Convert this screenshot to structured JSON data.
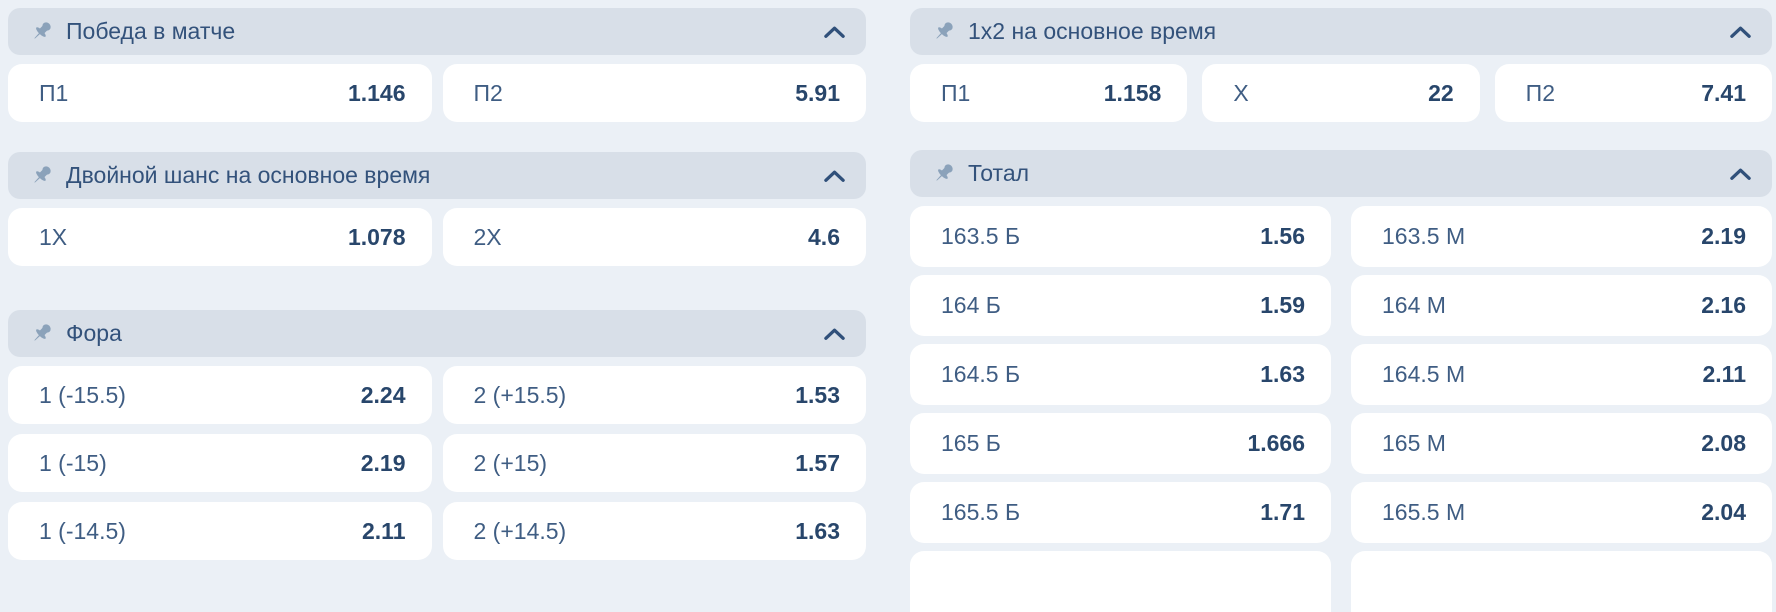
{
  "theme": {
    "page_bg": "#ebf0f6",
    "header_bg": "#d8dfe8",
    "header_text": "#33527b",
    "label_text": "#3f5d83",
    "value_text": "#28466b",
    "cell_bg": "#ffffff",
    "pin_color": "#8ba2ba",
    "chevron_color": "#30507a"
  },
  "columns": [
    {
      "name": "left",
      "sections": [
        {
          "title": "Победа в матче",
          "pin_icon": "pushpin-icon",
          "collapse_icon": "chevron-up-icon",
          "rows": [
            [
              {
                "label": "П1",
                "value": "1.146"
              },
              {
                "label": "П2",
                "value": "5.91"
              }
            ]
          ]
        },
        {
          "title": "Двойной шанс на основное время",
          "pin_icon": "pushpin-icon",
          "collapse_icon": "chevron-up-icon",
          "rows": [
            [
              {
                "label": "1X",
                "value": "1.078"
              },
              {
                "label": "2X",
                "value": "4.6"
              }
            ]
          ]
        },
        {
          "title": "Фора",
          "pin_icon": "pushpin-icon",
          "collapse_icon": "chevron-up-icon",
          "rows": [
            [
              {
                "label": "1 (-15.5)",
                "value": "2.24"
              },
              {
                "label": "2 (+15.5)",
                "value": "1.53"
              }
            ],
            [
              {
                "label": "1 (-15)",
                "value": "2.19"
              },
              {
                "label": "2 (+15)",
                "value": "1.57"
              }
            ],
            [
              {
                "label": "1 (-14.5)",
                "value": "2.11"
              },
              {
                "label": "2 (+14.5)",
                "value": "1.63"
              }
            ]
          ]
        }
      ]
    },
    {
      "name": "right",
      "sections": [
        {
          "title": "1x2 на основное время",
          "pin_icon": "pushpin-icon",
          "collapse_icon": "chevron-up-icon",
          "rows": [
            [
              {
                "label": "П1",
                "value": "1.158"
              },
              {
                "label": "X",
                "value": "22"
              },
              {
                "label": "П2",
                "value": "7.41"
              }
            ]
          ]
        },
        {
          "title": "Тотал",
          "pin_icon": "pushpin-icon",
          "collapse_icon": "chevron-up-icon",
          "partial_next_row": true,
          "rows": [
            [
              {
                "label": "163.5 Б",
                "value": "1.56"
              },
              {
                "label": "163.5 М",
                "value": "2.19"
              }
            ],
            [
              {
                "label": "164 Б",
                "value": "1.59"
              },
              {
                "label": "164 М",
                "value": "2.16"
              }
            ],
            [
              {
                "label": "164.5 Б",
                "value": "1.63"
              },
              {
                "label": "164.5 М",
                "value": "2.11"
              }
            ],
            [
              {
                "label": "165 Б",
                "value": "1.666"
              },
              {
                "label": "165 М",
                "value": "2.08"
              }
            ],
            [
              {
                "label": "165.5 Б",
                "value": "1.71"
              },
              {
                "label": "165.5 М",
                "value": "2.04"
              }
            ]
          ]
        }
      ]
    }
  ]
}
